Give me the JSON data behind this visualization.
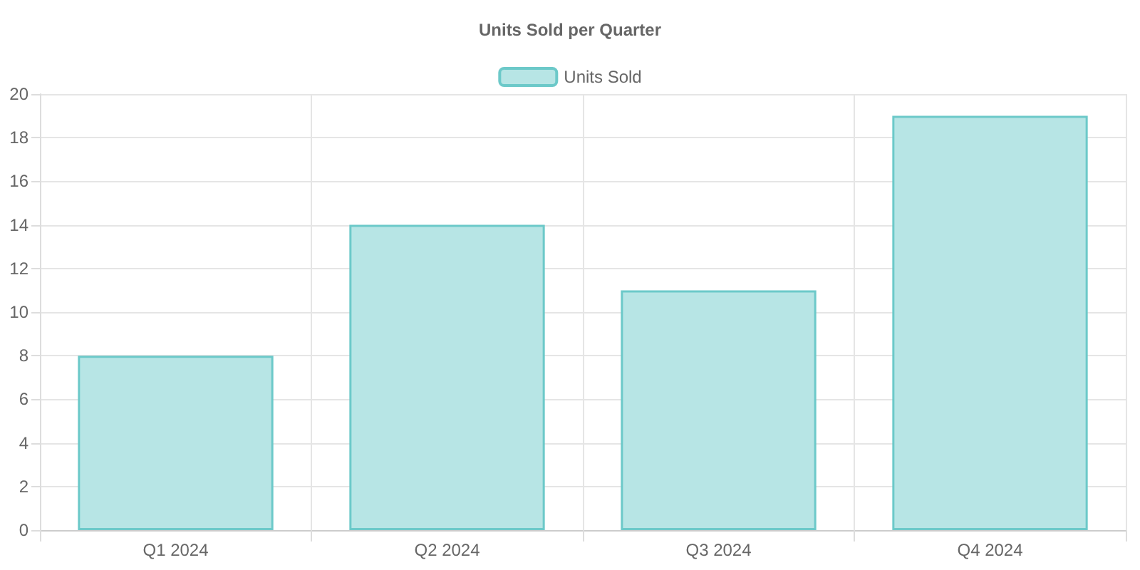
{
  "chart_data": {
    "type": "bar",
    "title": "Units Sold per Quarter",
    "categories": [
      "Q1 2024",
      "Q2 2024",
      "Q3 2024",
      "Q4 2024"
    ],
    "series": [
      {
        "name": "Units Sold",
        "color": "#b7e5e5",
        "values": [
          8,
          14,
          11,
          19
        ]
      }
    ],
    "ylim": [
      0,
      20
    ],
    "yticks": [
      0,
      2,
      4,
      6,
      8,
      10,
      12,
      14,
      16,
      18,
      20
    ],
    "grid": true,
    "legend": "top"
  }
}
